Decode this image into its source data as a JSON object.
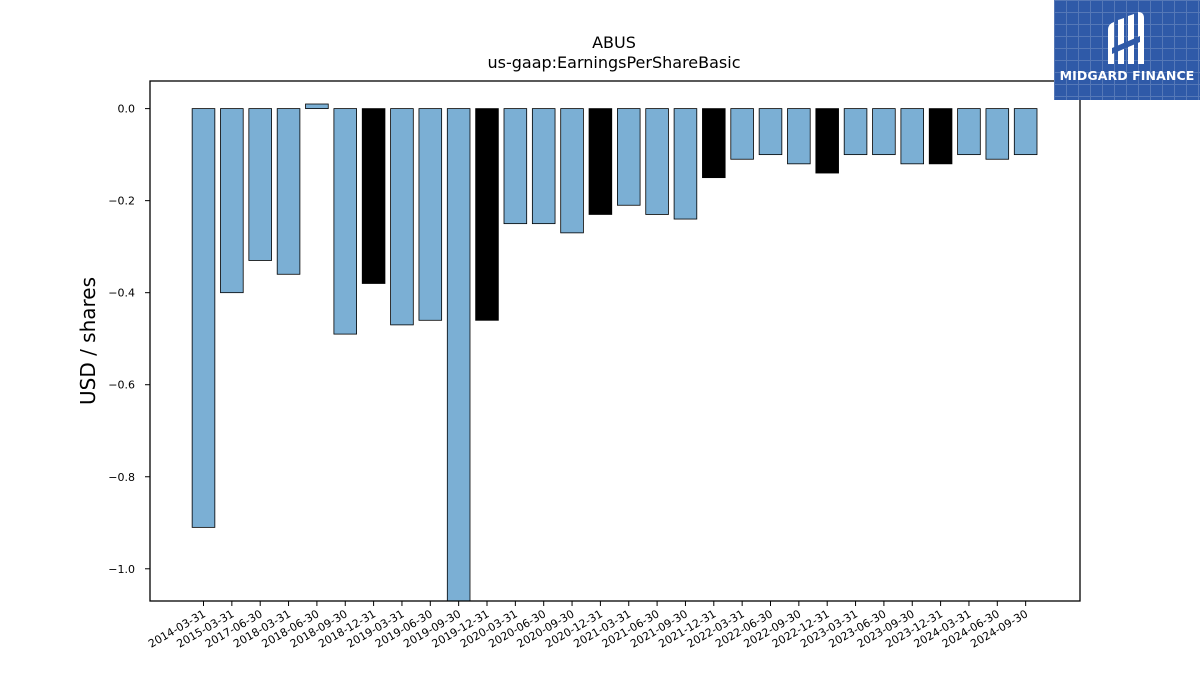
{
  "chart_data": {
    "type": "bar",
    "title": "ABUS",
    "subtitle": "us-gaap:EarningsPerShareBasic",
    "xlabel": "",
    "ylabel": "USD / shares",
    "ylim": [
      -1.07,
      0.06
    ],
    "yticks": [
      0.0,
      -0.2,
      -0.4,
      -0.6,
      -0.8,
      -1.0
    ],
    "ytick_labels": [
      "0.0",
      "−0.2",
      "−0.4",
      "−0.6",
      "−0.8",
      "−1.0"
    ],
    "grid": false,
    "categories": [
      "2014-03-31",
      "2015-03-31",
      "2017-06-30",
      "2018-03-31",
      "2018-06-30",
      "2018-09-30",
      "2018-12-31",
      "2019-03-31",
      "2019-06-30",
      "2019-09-30",
      "2019-12-31",
      "2020-03-31",
      "2020-06-30",
      "2020-09-30",
      "2020-12-31",
      "2021-03-31",
      "2021-06-30",
      "2021-09-30",
      "2021-12-31",
      "2022-03-31",
      "2022-06-30",
      "2022-09-30",
      "2022-12-31",
      "2023-03-31",
      "2023-06-30",
      "2023-09-30",
      "2023-12-31",
      "2024-03-31",
      "2024-06-30",
      "2024-09-30"
    ],
    "values": [
      -0.91,
      -0.4,
      -0.33,
      -0.36,
      0.01,
      -0.49,
      -0.38,
      -0.47,
      -0.46,
      -1.1,
      -0.46,
      -0.25,
      -0.25,
      -0.27,
      -0.23,
      -0.21,
      -0.23,
      -0.24,
      -0.15,
      -0.11,
      -0.1,
      -0.12,
      -0.14,
      -0.1,
      -0.1,
      -0.12,
      -0.12,
      -0.1,
      -0.11,
      -0.1
    ],
    "bar_colors": [
      "#7bafd4",
      "#7bafd4",
      "#7bafd4",
      "#7bafd4",
      "#7bafd4",
      "#7bafd4",
      "#000000",
      "#7bafd4",
      "#7bafd4",
      "#7bafd4",
      "#000000",
      "#7bafd4",
      "#7bafd4",
      "#7bafd4",
      "#000000",
      "#7bafd4",
      "#7bafd4",
      "#7bafd4",
      "#000000",
      "#7bafd4",
      "#7bafd4",
      "#7bafd4",
      "#000000",
      "#7bafd4",
      "#7bafd4",
      "#7bafd4",
      "#000000",
      "#7bafd4",
      "#7bafd4",
      "#7bafd4"
    ]
  },
  "logo": {
    "text": "MIDGARD FINANCE",
    "background": "#2f5aa8"
  }
}
